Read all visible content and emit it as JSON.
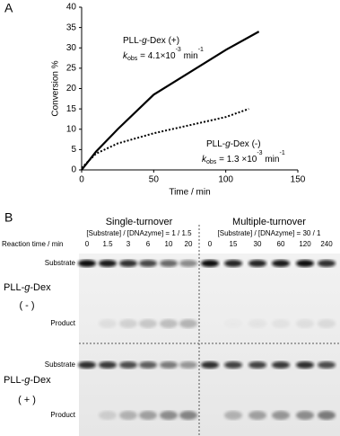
{
  "chart_data": {
    "type": "line",
    "panel_label": "A",
    "xlabel": "Time / min",
    "ylabel": "Conversion %",
    "xlim": [
      0,
      150
    ],
    "ylim": [
      0,
      40
    ],
    "xticks": [
      0,
      50,
      100,
      150
    ],
    "yticks": [
      0,
      5,
      10,
      15,
      20,
      25,
      30,
      35,
      40
    ],
    "series": [
      {
        "color": "#000000",
        "dash": "solid",
        "x": [
          0,
          10,
          25,
          50,
          75,
          100,
          123
        ],
        "values": [
          0,
          4.5,
          10,
          18.5,
          24,
          29.5,
          34
        ]
      },
      {
        "color": "#000000",
        "dash": "dotted",
        "x": [
          0,
          10,
          25,
          50,
          75,
          100,
          116
        ],
        "values": [
          0.5,
          4,
          6.5,
          9,
          11,
          13,
          15
        ]
      }
    ],
    "annotations": [
      {
        "name_parts": [
          "PLL-",
          "g",
          "-Dex (+)"
        ],
        "rate_parts": [
          "k",
          "obs",
          " = 4.1×10",
          "-3",
          " min",
          "-1"
        ]
      },
      {
        "name_parts": [
          "PLL-",
          "g",
          "-Dex (-)"
        ],
        "rate_parts": [
          "k",
          "obs",
          " = 1.3 ×10",
          "-3",
          " min",
          "-1"
        ]
      }
    ]
  },
  "gel": {
    "panel_label": "B",
    "time_label": "Reaction time / min",
    "groups": [
      {
        "title": "Single-turnover",
        "condition": "[Substrate] / [DNAzyme] = 1 / 1.5",
        "times": [
          0,
          1.5,
          3,
          6,
          10,
          20
        ]
      },
      {
        "title": "Multiple-turnover",
        "condition": "[Substrate] / [DNAzyme] = 30 / 1",
        "times": [
          0,
          15,
          30,
          60,
          120,
          240
        ]
      }
    ],
    "rows": [
      {
        "substrate": "Substrate",
        "name_parts": [
          "PLL-",
          "g",
          "-Dex"
        ],
        "sign": "( - )",
        "product": "Product"
      },
      {
        "substrate": "Substrate",
        "name_parts": [
          "PLL-",
          "g",
          "-Dex"
        ],
        "sign": "( + )",
        "product": "Product"
      }
    ]
  }
}
